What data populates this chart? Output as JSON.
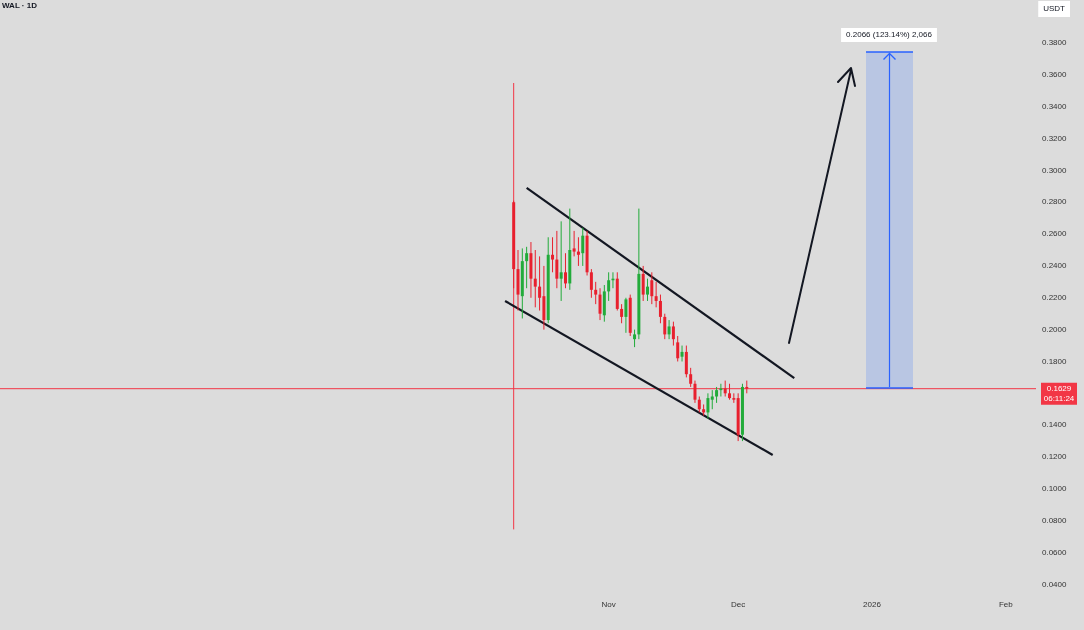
{
  "chart_data": {
    "type": "candlestick",
    "title": "WAL · 1D",
    "ylabel": "USDT",
    "x": [
      "2025-10-10",
      "2025-10-11",
      "2025-10-12",
      "2025-10-13",
      "2025-10-14",
      "2025-10-15",
      "2025-10-16",
      "2025-10-17",
      "2025-10-18",
      "2025-10-19",
      "2025-10-20",
      "2025-10-21",
      "2025-10-22",
      "2025-10-23",
      "2025-10-24",
      "2025-10-25",
      "2025-10-26",
      "2025-10-27",
      "2025-10-28",
      "2025-10-29",
      "2025-10-30",
      "2025-10-31",
      "2025-11-01",
      "2025-11-02",
      "2025-11-03",
      "2025-11-04",
      "2025-11-05",
      "2025-11-06",
      "2025-11-07",
      "2025-11-08",
      "2025-11-09",
      "2025-11-10",
      "2025-11-11",
      "2025-11-12",
      "2025-11-13",
      "2025-11-14",
      "2025-11-15",
      "2025-11-16",
      "2025-11-17",
      "2025-11-18",
      "2025-11-19",
      "2025-11-20",
      "2025-11-21",
      "2025-11-22",
      "2025-11-23",
      "2025-11-24",
      "2025-11-25",
      "2025-11-26",
      "2025-11-27",
      "2025-11-28",
      "2025-11-29",
      "2025-11-30",
      "2025-12-01",
      "2025-12-02",
      "2025-12-03"
    ],
    "ohlc": [
      [
        0.28,
        0.281,
        0.226,
        0.238
      ],
      [
        0.238,
        0.25,
        0.212,
        0.222
      ],
      [
        0.221,
        0.251,
        0.207,
        0.243
      ],
      [
        0.243,
        0.252,
        0.226,
        0.248
      ],
      [
        0.248,
        0.255,
        0.22,
        0.232
      ],
      [
        0.232,
        0.25,
        0.214,
        0.227
      ],
      [
        0.227,
        0.246,
        0.212,
        0.22
      ],
      [
        0.221,
        0.24,
        0.2,
        0.206
      ],
      [
        0.206,
        0.258,
        0.204,
        0.247
      ],
      [
        0.247,
        0.258,
        0.236,
        0.244
      ],
      [
        0.244,
        0.262,
        0.226,
        0.232
      ],
      [
        0.232,
        0.268,
        0.218,
        0.236
      ],
      [
        0.236,
        0.248,
        0.226,
        0.229
      ],
      [
        0.229,
        0.276,
        0.225,
        0.25
      ],
      [
        0.251,
        0.262,
        0.246,
        0.249
      ],
      [
        0.249,
        0.258,
        0.24,
        0.247
      ],
      [
        0.248,
        0.264,
        0.24,
        0.259
      ],
      [
        0.259,
        0.262,
        0.234,
        0.236
      ],
      [
        0.236,
        0.238,
        0.22,
        0.225
      ],
      [
        0.225,
        0.23,
        0.216,
        0.222
      ],
      [
        0.222,
        0.226,
        0.206,
        0.21
      ],
      [
        0.209,
        0.228,
        0.205,
        0.224
      ],
      [
        0.224,
        0.236,
        0.218,
        0.231
      ],
      [
        0.231,
        0.236,
        0.226,
        0.232
      ],
      [
        0.232,
        0.236,
        0.212,
        0.213
      ],
      [
        0.213,
        0.216,
        0.204,
        0.208
      ],
      [
        0.208,
        0.22,
        0.198,
        0.219
      ],
      [
        0.22,
        0.222,
        0.196,
        0.198
      ],
      [
        0.194,
        0.2,
        0.189,
        0.197
      ],
      [
        0.197,
        0.276,
        0.194,
        0.235
      ],
      [
        0.235,
        0.24,
        0.218,
        0.222
      ],
      [
        0.222,
        0.232,
        0.218,
        0.227
      ],
      [
        0.231,
        0.236,
        0.216,
        0.221
      ],
      [
        0.221,
        0.23,
        0.214,
        0.218
      ],
      [
        0.218,
        0.222,
        0.204,
        0.208
      ],
      [
        0.208,
        0.21,
        0.194,
        0.197
      ],
      [
        0.197,
        0.206,
        0.194,
        0.202
      ],
      [
        0.202,
        0.205,
        0.19,
        0.194
      ],
      [
        0.192,
        0.196,
        0.18,
        0.182
      ],
      [
        0.183,
        0.19,
        0.18,
        0.186
      ],
      [
        0.186,
        0.19,
        0.17,
        0.172
      ],
      [
        0.172,
        0.176,
        0.164,
        0.166
      ],
      [
        0.166,
        0.168,
        0.154,
        0.156
      ],
      [
        0.156,
        0.158,
        0.148,
        0.15
      ],
      [
        0.15,
        0.153,
        0.146,
        0.148
      ],
      [
        0.148,
        0.16,
        0.144,
        0.157
      ],
      [
        0.156,
        0.162,
        0.15,
        0.158
      ],
      [
        0.158,
        0.164,
        0.154,
        0.162
      ],
      [
        0.162,
        0.166,
        0.158,
        0.163
      ],
      [
        0.163,
        0.168,
        0.158,
        0.16
      ],
      [
        0.16,
        0.166,
        0.156,
        0.157
      ],
      [
        0.157,
        0.16,
        0.154,
        0.156
      ],
      [
        0.157,
        0.16,
        0.13,
        0.134
      ],
      [
        0.134,
        0.166,
        0.13,
        0.164
      ],
      [
        0.164,
        0.168,
        0.16,
        0.163
      ]
    ],
    "colors": [
      "#e8202e",
      "#e8202e",
      "#22ab3a",
      "#22ab3a",
      "#e8202e",
      "#e8202e",
      "#e8202e",
      "#e8202e",
      "#22ab3a",
      "#e8202e",
      "#e8202e",
      "#22ab3a",
      "#e8202e",
      "#22ab3a",
      "#e8202e",
      "#e8202e",
      "#22ab3a",
      "#e8202e",
      "#e8202e",
      "#e8202e",
      "#e8202e",
      "#22ab3a",
      "#22ab3a",
      "#22ab3a",
      "#e8202e",
      "#e8202e",
      "#22ab3a",
      "#e8202e",
      "#22ab3a",
      "#22ab3a",
      "#e8202e",
      "#22ab3a",
      "#e8202e",
      "#e8202e",
      "#e8202e",
      "#e8202e",
      "#22ab3a",
      "#e8202e",
      "#e8202e",
      "#22ab3a",
      "#e8202e",
      "#e8202e",
      "#e8202e",
      "#e8202e",
      "#e8202e",
      "#22ab3a",
      "#22ab3a",
      "#22ab3a",
      "#22ab3a",
      "#e8202e",
      "#e8202e",
      "#e8202e",
      "#e8202e",
      "#22ab3a",
      "#e8202e"
    ],
    "series": [
      {
        "type": "line",
        "color": "#131722",
        "x": [
          "2025-10-13",
          "2025-12-14"
        ],
        "values": [
          0.289,
          0.1696
        ]
      },
      {
        "type": "line",
        "color": "#131722",
        "x": [
          "2025-10-08",
          "2025-12-09"
        ],
        "values": [
          0.218,
          0.1213
        ]
      }
    ],
    "ref_lines": [
      {
        "axis": "x",
        "value": "2025-10-10",
        "color": "#f23645"
      },
      {
        "axis": "y",
        "value": 0.1629,
        "label": "0.1629",
        "color": "#f23645"
      }
    ],
    "annotations": [
      "0.2066 (123.14%) 2,066",
      "06:11:24"
    ],
    "xlim": [
      "2025-06-13",
      "2026-02-08"
    ],
    "xticks": [
      {
        "value": "2025-11-01",
        "label": "Nov"
      },
      {
        "value": "2025-12-01",
        "label": "Dec"
      },
      {
        "value": "2026-01-01",
        "label": "2026"
      },
      {
        "value": "2026-02-01",
        "label": "Feb"
      }
    ],
    "ylim": [
      0.04,
      0.38
    ],
    "yticks": [
      {
        "value": 0.04,
        "label": "0.0400"
      },
      {
        "value": 0.06,
        "label": "0.0600"
      },
      {
        "value": 0.08,
        "label": "0.0800"
      },
      {
        "value": 0.1,
        "label": "0.1000"
      },
      {
        "value": 0.12,
        "label": "0.1200"
      },
      {
        "value": 0.14,
        "label": "0.1400"
      },
      {
        "value": 0.18,
        "label": "0.1800"
      },
      {
        "value": 0.2,
        "label": "0.2000"
      },
      {
        "value": 0.22,
        "label": "0.2200"
      },
      {
        "value": 0.24,
        "label": "0.2400"
      },
      {
        "value": 0.26,
        "label": "0.2600"
      },
      {
        "value": 0.28,
        "label": "0.2800"
      },
      {
        "value": 0.3,
        "label": "0.3000"
      },
      {
        "value": 0.32,
        "label": "0.3200"
      },
      {
        "value": 0.34,
        "label": "0.3400"
      },
      {
        "value": 0.36,
        "label": "0.3600"
      },
      {
        "value": 0.38,
        "label": "0.3800"
      }
    ],
    "grid": false,
    "legend": false
  }
}
